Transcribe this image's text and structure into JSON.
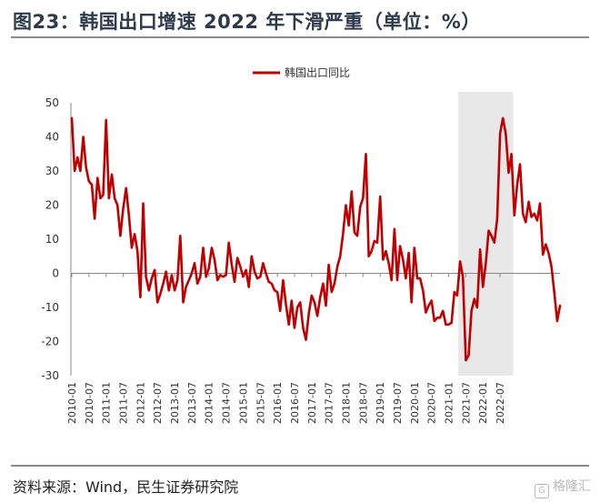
{
  "title": "图23：韩国出口增速 2022 年下滑严重（单位：%）",
  "source": "资料来源：Wind，民生证券研究院",
  "watermark": "格隆汇",
  "colors": {
    "line": "#c00000",
    "shade": "#e8e8e8",
    "axis": "#888888"
  },
  "chart_data": {
    "type": "line",
    "title": "",
    "xlabel": "",
    "ylabel": "",
    "ylim": [
      -30,
      50
    ],
    "yticks": [
      -30,
      -20,
      -10,
      0,
      10,
      20,
      30,
      40,
      50
    ],
    "legend": "top-center",
    "grid": false,
    "shaded_period": [
      "2021-05",
      "2022-11"
    ],
    "x_tick_labels": [
      "2010-01",
      "2010-07",
      "2011-01",
      "2011-07",
      "2012-01",
      "2012-07",
      "2013-01",
      "2013-07",
      "2014-01",
      "2014-07",
      "2015-01",
      "2015-07",
      "2016-01",
      "2016-07",
      "2017-01",
      "2017-07",
      "2018-01",
      "2018-07",
      "2019-01",
      "2019-07",
      "2020-01",
      "2020-07",
      "2021-01",
      "2021-07",
      "2022-01",
      "2022-07"
    ],
    "start": "2010-01",
    "series": [
      {
        "name": "韩国出口同比",
        "values": [
          45.5,
          30,
          34,
          30,
          40,
          31,
          27,
          26,
          16,
          28,
          22,
          23,
          45,
          22,
          29,
          22,
          20,
          11,
          19,
          25,
          17,
          7.5,
          11.5,
          6.5,
          -7,
          20.5,
          -1,
          -5,
          -1.5,
          1,
          -8.5,
          -6,
          -3,
          0.5,
          -5,
          -0.5,
          -5,
          -2,
          11,
          -8.5,
          -4,
          -2,
          0,
          3,
          -3,
          -1,
          7.5,
          -1,
          1.5,
          7.5,
          4,
          -2,
          -0.5,
          -1,
          -0.5,
          9,
          2.5,
          -2.5,
          4.5,
          2,
          -1,
          1,
          -4,
          5,
          0.5,
          -1.5,
          -1,
          3,
          0,
          -2.5,
          -3,
          -5,
          -5.5,
          -11,
          -2,
          -9,
          -15,
          -8,
          -16,
          -10,
          -8.5,
          -16,
          -19.5,
          -12,
          -6.5,
          -8.5,
          -12.5,
          -7,
          -3,
          -9.5,
          2.5,
          -5.5,
          -3,
          2,
          5,
          11.5,
          20,
          14,
          24,
          12,
          11,
          19.5,
          22,
          35,
          5,
          6.5,
          9.5,
          9,
          22.5,
          4,
          6.5,
          3,
          -2,
          13,
          -2,
          8,
          4,
          -1.5,
          6,
          -8.5,
          7.5,
          -1.5,
          -1.5,
          -5,
          -11.5,
          -9.5,
          -8,
          -14,
          -13,
          -13,
          -11,
          -15,
          -15,
          -14.5,
          -5.5,
          -6.5,
          3.5,
          -1,
          -25.5,
          -24,
          -11,
          -7.5,
          -10,
          7,
          -4,
          3,
          12.5,
          11,
          9,
          16,
          41,
          45.5,
          41,
          29.5,
          35,
          17,
          26,
          32,
          17.5,
          15,
          21,
          16.5,
          17.5,
          15.5,
          20.5,
          5.5,
          8.5,
          6,
          2,
          -5.5,
          -14,
          -9.5
        ]
      }
    ]
  }
}
